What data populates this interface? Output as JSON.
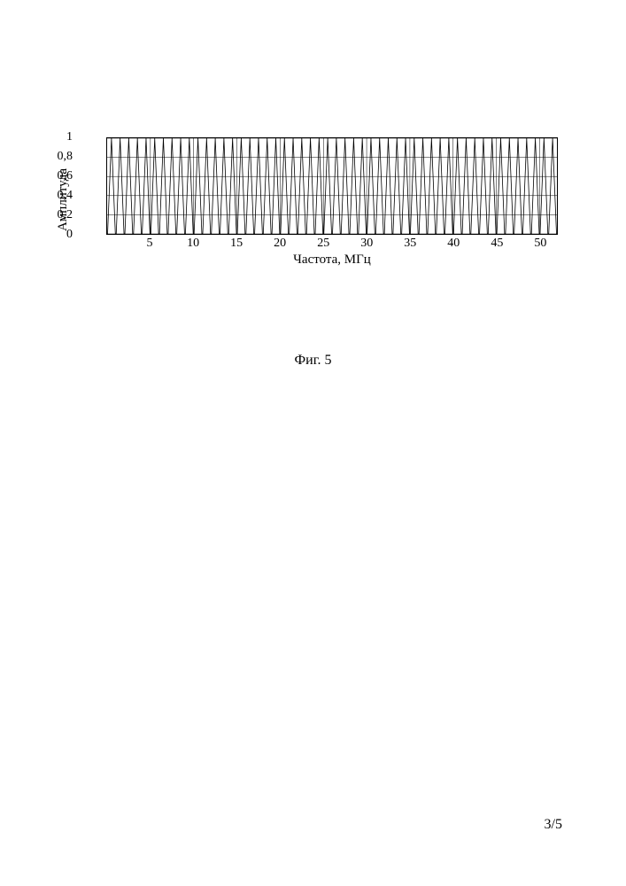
{
  "chart": {
    "type": "line",
    "ylabel": "Амплитуда",
    "xlabel": "Частота, МГц",
    "xlim": [
      0,
      52
    ],
    "ylim": [
      0,
      1
    ],
    "yticks": [
      0,
      0.2,
      0.4,
      0.6,
      0.8,
      1
    ],
    "ytick_labels": [
      "0",
      "0,2",
      "0,4",
      "0,6",
      "0,8",
      "1"
    ],
    "xticks": [
      5,
      10,
      15,
      20,
      25,
      30,
      35,
      40,
      45,
      50
    ],
    "xtick_labels": [
      "5",
      "10",
      "15",
      "20",
      "25",
      "30",
      "35",
      "40",
      "45",
      "50"
    ],
    "grid_color": "#000000",
    "grid_linewidth": 0.5,
    "background_color": "#ffffff",
    "axis_color": "#000000",
    "line_color": "#000000",
    "line_width": 0.8,
    "comb_spectrum": {
      "description": "dense comb of near-full-amplitude spectral lines",
      "n_peaks": 52,
      "peak_amplitude": 1.0,
      "valley_amplitude": 0.0,
      "x_start": 0.5,
      "x_step": 1.0
    },
    "label_fontsize": 15,
    "tick_fontsize": 14
  },
  "caption": "Фиг. 5",
  "page_number": "3/5"
}
